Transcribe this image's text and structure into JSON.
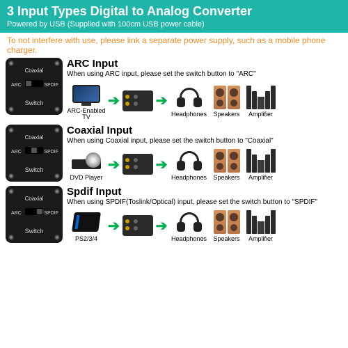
{
  "colors": {
    "header_bg": "#1fb5a8",
    "warning_text": "#f28c28",
    "arrow_green": "#00b04f"
  },
  "header": {
    "title": "3 Input Types Digital to Analog Converter",
    "subtitle": "Powered by USB (Supplied with 100cm USB power cable)"
  },
  "warning": "To not interfere with use, please link a separate power supply, such as a mobile phone charger.",
  "switch_labels": {
    "coaxial": "Coaxial",
    "arc": "ARC",
    "spdif": "SPDIF",
    "switch": "Switch"
  },
  "rows": [
    {
      "title": "ARC Input",
      "desc": "When using ARC input, please set the switch button to \"ARC\"",
      "knob_pos": "left",
      "source_label": "ARC-Enabled TV",
      "source_type": "tv"
    },
    {
      "title": "Coaxial Input",
      "desc": "When using Coaxial input, please set the switch button to \"Coaxial\"",
      "knob_pos": "center",
      "source_label": "DVD Player",
      "source_type": "dvd"
    },
    {
      "title": "Spdif Input",
      "desc": "When using SPDIF(Toslink/Optical) input, please set the switch button to \"SPDIF\"",
      "knob_pos": "right",
      "source_label": "PS2/3/4",
      "source_type": "ps"
    }
  ],
  "outputs": {
    "headphones": "Headphones",
    "speakers": "Speakers",
    "amplifier": "Amplifier"
  }
}
